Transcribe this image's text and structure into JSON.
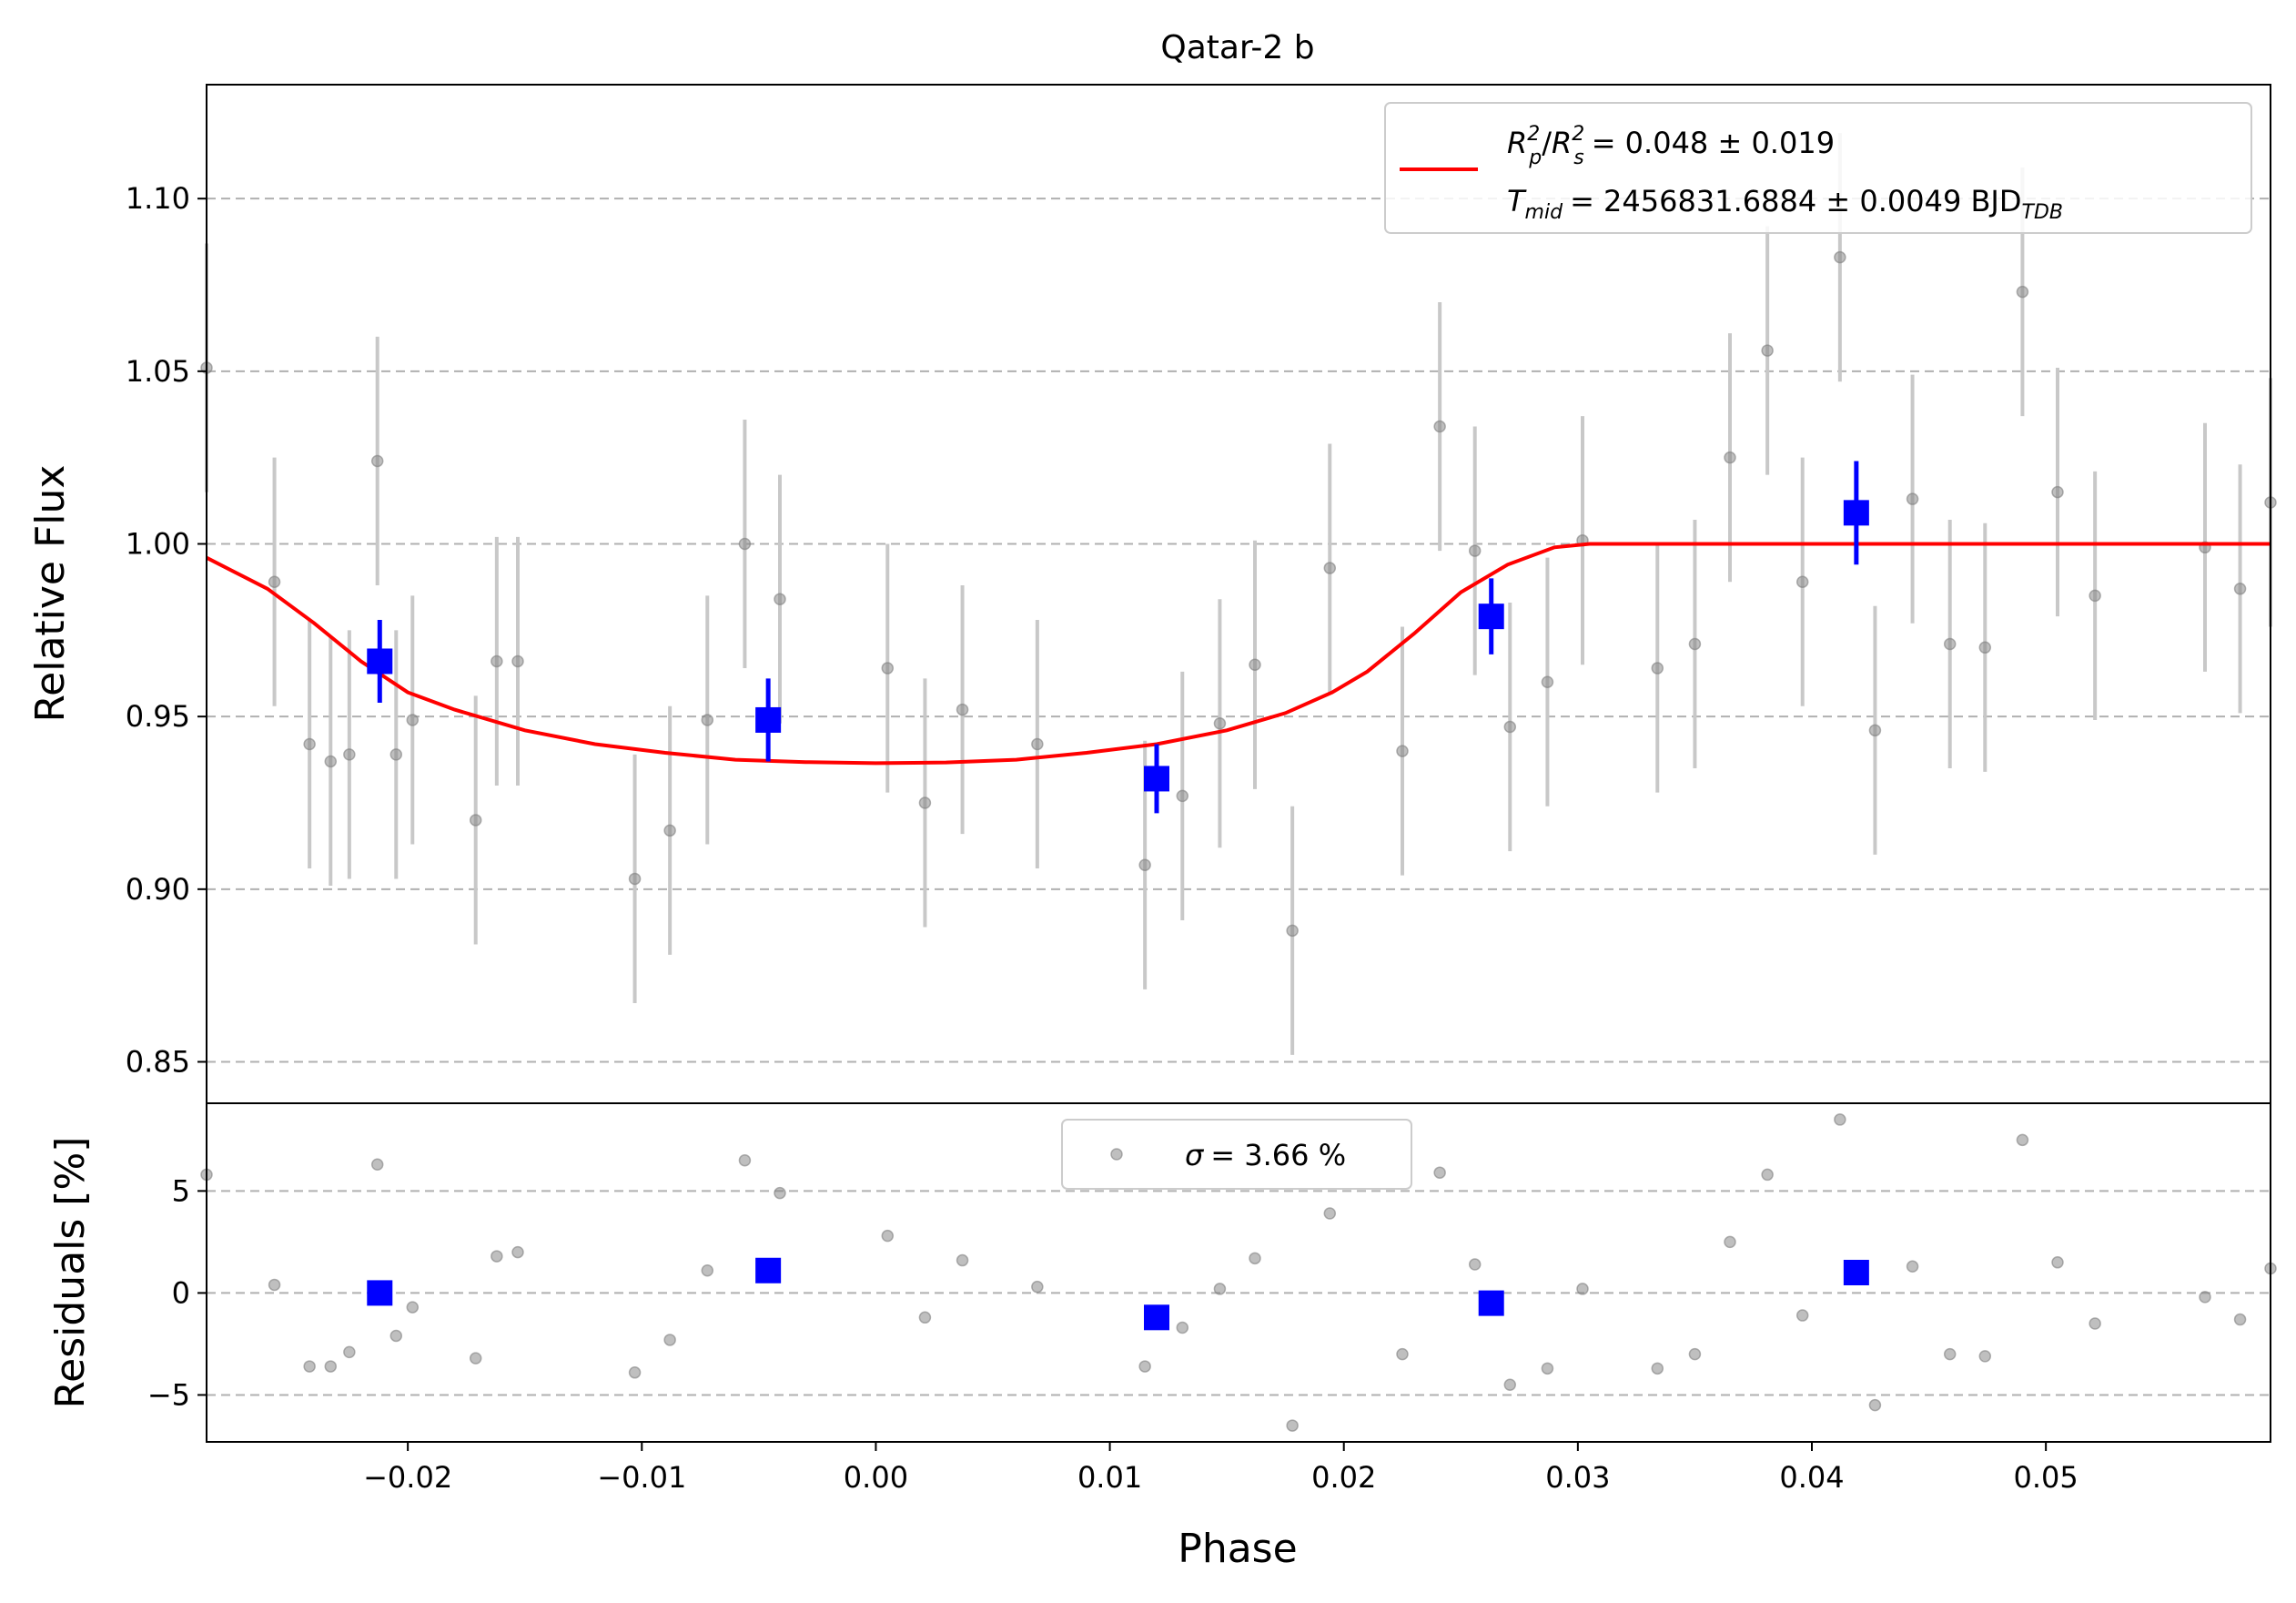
{
  "chart_data": {
    "type": "scatter",
    "title": "Qatar-2 b",
    "xlabel": "Phase",
    "x_ticks": [
      "−0.02",
      "−0.01",
      "0.00",
      "0.01",
      "0.02",
      "0.03",
      "0.04",
      "0.05"
    ],
    "x_tick_values": [
      -0.02,
      -0.01,
      0.0,
      0.01,
      0.02,
      0.03,
      0.04,
      0.05
    ],
    "xlim": [
      -0.0286,
      0.0596
    ],
    "grid": "horizontal dashed",
    "colors": {
      "data": "#808080",
      "errorbar": "#c8c8c8",
      "binned": "#0000ff",
      "model": "#ff0000"
    },
    "top_panel": {
      "ylabel": "Relative Flux",
      "ylim": [
        0.838,
        1.133
      ],
      "y_ticks": [
        "0.85",
        "0.90",
        "0.95",
        "1.00",
        "1.05",
        "1.10"
      ],
      "y_tick_values": [
        0.85,
        0.9,
        0.95,
        1.0,
        1.05,
        1.1
      ],
      "legend": {
        "placement": "upper right",
        "line1_main": "R",
        "line1_sub_p": "p",
        "line1_sup": "2",
        "line1_sub_s": "s",
        "line1_value": "= 0.048 ± 0.019",
        "line2_main": "T",
        "line2_sub": "mid",
        "line2_value": "= 2456831.6884 ± 0.0049 BJD",
        "line2_unit_sub": "TDB"
      },
      "data": {
        "x": [
          -0.0286,
          -0.0257,
          -0.0242,
          -0.0233,
          -0.0225,
          -0.0213,
          -0.0205,
          -0.0198,
          -0.0171,
          -0.0162,
          -0.0153,
          -0.0103,
          -0.0088,
          -0.0072,
          -0.0056,
          -0.0041,
          0.0005,
          0.0021,
          0.0037,
          0.0069,
          0.0115,
          0.0131,
          0.0147,
          0.0162,
          0.0178,
          0.0194,
          0.0225,
          0.0241,
          0.0256,
          0.0271,
          0.0287,
          0.0302,
          0.0334,
          0.035,
          0.0365,
          0.0381,
          0.0396,
          0.0412,
          0.0427,
          0.0443,
          0.0459,
          0.0474,
          0.049,
          0.0505,
          0.0521,
          0.0568,
          0.0583,
          0.0596
        ],
        "y": [
          1.051,
          0.989,
          0.942,
          0.937,
          0.939,
          1.024,
          0.939,
          0.949,
          0.92,
          0.966,
          0.966,
          0.903,
          0.917,
          0.949,
          1.0,
          0.984,
          0.964,
          0.925,
          0.952,
          0.942,
          0.907,
          0.927,
          0.948,
          0.965,
          0.888,
          0.993,
          0.94,
          1.034,
          0.998,
          0.947,
          0.96,
          1.001,
          0.964,
          0.971,
          1.025,
          1.056,
          0.989,
          1.083,
          0.946,
          1.013,
          0.971,
          0.97,
          1.073,
          1.015,
          0.985,
          0.999,
          0.987,
          1.012
        ],
        "err": 0.036
      },
      "binned": {
        "x": [
          -0.0212,
          -0.0046,
          0.012,
          0.0263,
          0.0419
        ],
        "y": [
          0.966,
          0.949,
          0.932,
          0.979,
          1.009
        ],
        "err": [
          0.012,
          0.012,
          0.01,
          0.011,
          0.015
        ]
      },
      "model": {
        "x": [
          -0.0286,
          -0.026,
          -0.024,
          -0.022,
          -0.02,
          -0.018,
          -0.015,
          -0.012,
          -0.009,
          -0.006,
          -0.003,
          0.0,
          0.003,
          0.006,
          0.009,
          0.012,
          0.015,
          0.0175,
          0.0195,
          0.021,
          0.023,
          0.025,
          0.027,
          0.029,
          0.0305,
          0.0312,
          0.0596
        ],
        "y": [
          0.996,
          0.987,
          0.977,
          0.966,
          0.957,
          0.952,
          0.946,
          0.942,
          0.9395,
          0.9375,
          0.9368,
          0.9365,
          0.9367,
          0.9375,
          0.9395,
          0.942,
          0.946,
          0.951,
          0.957,
          0.963,
          0.974,
          0.986,
          0.994,
          0.999,
          1.0,
          1.0,
          1.0
        ]
      }
    },
    "bottom_panel": {
      "ylabel": "Residuals [%]",
      "ylim": [
        -7.3,
        9.3
      ],
      "y_ticks": [
        "−5",
        "0",
        "5"
      ],
      "y_tick_values": [
        -5,
        0,
        5
      ],
      "legend": {
        "placement": "upper center",
        "sigma": "σ",
        "text": "= 3.66 %"
      },
      "data": {
        "x": [
          -0.0286,
          -0.0257,
          -0.0242,
          -0.0233,
          -0.0225,
          -0.0213,
          -0.0205,
          -0.0198,
          -0.0171,
          -0.0162,
          -0.0153,
          -0.0103,
          -0.0088,
          -0.0072,
          -0.0056,
          -0.0041,
          0.0005,
          0.0021,
          0.0037,
          0.0069,
          0.0115,
          0.0131,
          0.0147,
          0.0162,
          0.0178,
          0.0194,
          0.0225,
          0.0241,
          0.0256,
          0.0271,
          0.0287,
          0.0302,
          0.0334,
          0.035,
          0.0365,
          0.0381,
          0.0396,
          0.0412,
          0.0427,
          0.0443,
          0.0459,
          0.0474,
          0.049,
          0.0505,
          0.0521,
          0.0568,
          0.0583,
          0.0596
        ],
        "y": [
          5.8,
          0.4,
          -3.6,
          -3.6,
          -2.9,
          6.3,
          -2.1,
          -0.7,
          -3.2,
          1.8,
          2.0,
          -3.9,
          -2.3,
          1.1,
          6.5,
          4.9,
          2.8,
          -1.2,
          1.6,
          0.3,
          -3.6,
          -1.7,
          0.2,
          1.7,
          -6.5,
          3.9,
          -3.0,
          5.9,
          1.4,
          -4.5,
          -3.7,
          0.2,
          -3.7,
          -3.0,
          2.5,
          5.8,
          -1.1,
          8.5,
          -5.5,
          1.3,
          -3.0,
          -3.1,
          7.5,
          1.5,
          -1.5,
          -0.2,
          -1.3,
          1.2
        ]
      },
      "binned": {
        "x": [
          -0.0212,
          -0.0046,
          0.012,
          0.0263,
          0.0419
        ],
        "y": [
          0.0,
          1.1,
          -1.2,
          -0.5,
          1.0
        ]
      }
    }
  }
}
